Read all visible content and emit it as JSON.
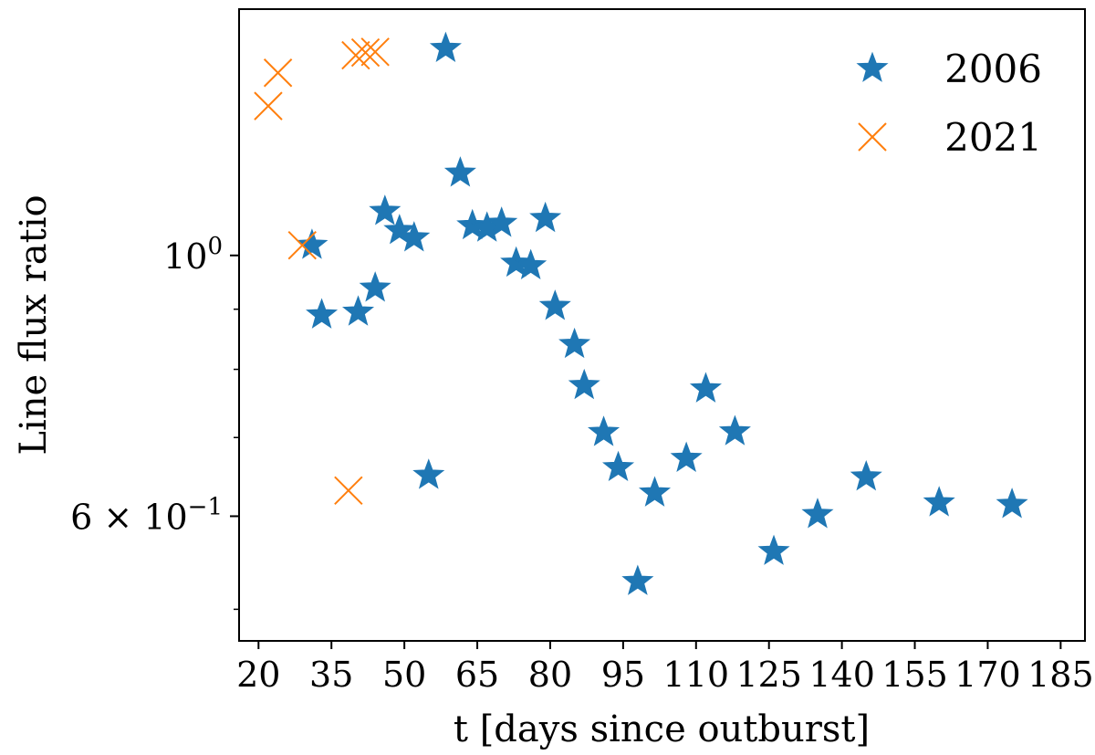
{
  "chart_data": {
    "type": "scatter",
    "title": "",
    "xlabel": "t [days since outburst]",
    "ylabel": "Line flux ratio",
    "xlim": [
      16,
      190
    ],
    "ylim": [
      0.47,
      1.62
    ],
    "yscale": "log",
    "grid": false,
    "legend_position": "top-right",
    "x_ticks": [
      20,
      35,
      50,
      65,
      80,
      95,
      110,
      125,
      140,
      155,
      170,
      185
    ],
    "x_tick_labels": [
      "20",
      "35",
      "50",
      "65",
      "80",
      "95",
      "110",
      "125",
      "140",
      "155",
      "170",
      "185"
    ],
    "y_major_ticks": [
      {
        "value": 1.0,
        "base": "10",
        "exp": "0",
        "prefix": ""
      },
      {
        "value": 0.6,
        "base": "10",
        "exp": "−1",
        "prefix": "6 × "
      }
    ],
    "y_minor_ticks": [
      0.5,
      0.7,
      0.8,
      0.9
    ],
    "series": [
      {
        "name": "2006",
        "marker": "star",
        "color": "#1f77b4",
        "points": [
          [
            31,
            1.02
          ],
          [
            33,
            0.89
          ],
          [
            40.5,
            0.895
          ],
          [
            44,
            0.938
          ],
          [
            46,
            1.09
          ],
          [
            49,
            1.05
          ],
          [
            52,
            1.035
          ],
          [
            55,
            0.65
          ],
          [
            58.5,
            1.5
          ],
          [
            61.5,
            1.175
          ],
          [
            64,
            1.06
          ],
          [
            67,
            1.055
          ],
          [
            70,
            1.065
          ],
          [
            73,
            0.985
          ],
          [
            76,
            0.98
          ],
          [
            79,
            1.075
          ],
          [
            81,
            0.905
          ],
          [
            85,
            0.84
          ],
          [
            87,
            0.775
          ],
          [
            91,
            0.707
          ],
          [
            94,
            0.66
          ],
          [
            98,
            0.528
          ],
          [
            101.5,
            0.628
          ],
          [
            108,
            0.672
          ],
          [
            112,
            0.77
          ],
          [
            118,
            0.708
          ],
          [
            126,
            0.56
          ],
          [
            135,
            0.602
          ],
          [
            145,
            0.648
          ],
          [
            160,
            0.616
          ],
          [
            175,
            0.614
          ]
        ]
      },
      {
        "name": "2021",
        "marker": "x",
        "color": "#ff7f0e",
        "points": [
          [
            22,
            1.34
          ],
          [
            24,
            1.43
          ],
          [
            29,
            1.02
          ],
          [
            38.5,
            0.631
          ],
          [
            40,
            1.48
          ],
          [
            42,
            1.488
          ],
          [
            44,
            1.49
          ]
        ]
      }
    ]
  }
}
